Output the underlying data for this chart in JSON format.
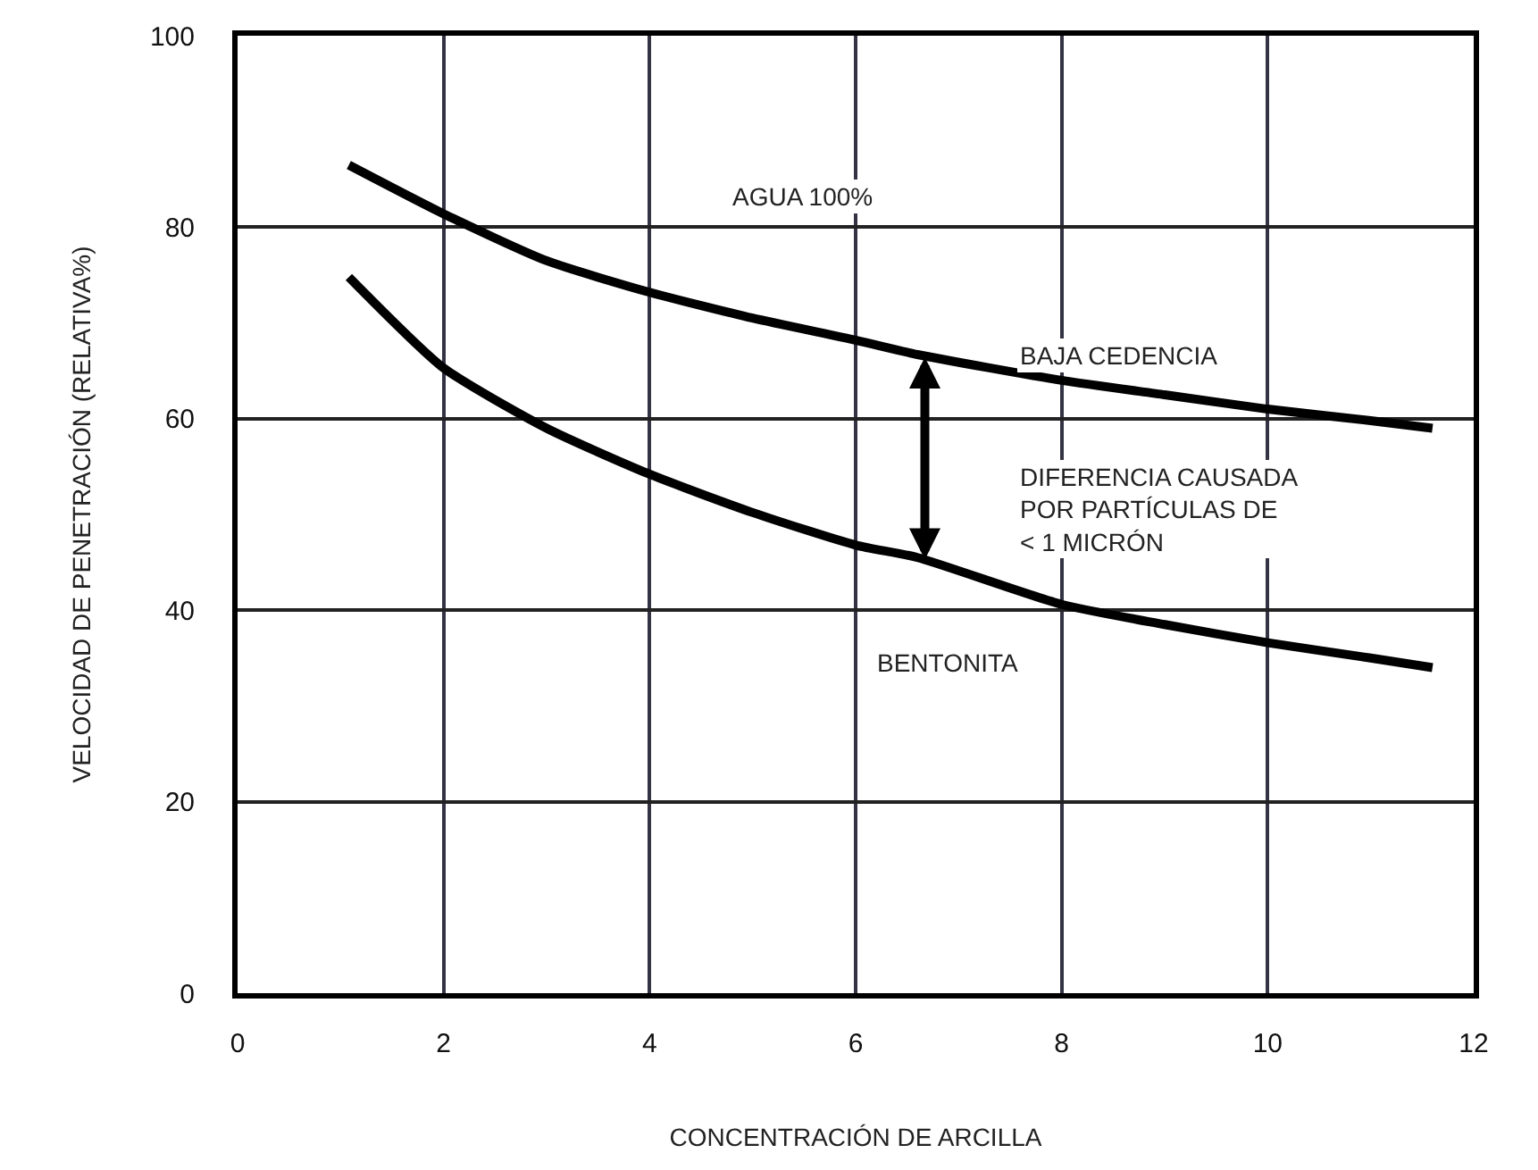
{
  "chart_data": {
    "type": "line",
    "xlabel": "CONCENTRACIÓN DE ARCILLA",
    "ylabel": "VELOCIDAD DE PENETRACIÓN (RELATIVA%)",
    "series": [
      {
        "color": "#000000",
        "x": [
          1.08,
          2,
          3,
          4,
          5,
          6,
          6.6,
          8,
          9,
          10,
          11,
          11.6
        ],
        "values": [
          86.5,
          81.4,
          76.5,
          73.2,
          70.5,
          68.2,
          66.7,
          64,
          62.5,
          61,
          59.8,
          59
        ]
      },
      {
        "color": "#000000",
        "x": [
          1.08,
          2,
          3,
          4,
          5,
          6,
          6.6,
          8,
          9,
          10,
          11,
          11.6
        ],
        "values": [
          74.8,
          65.3,
          59,
          54.2,
          50.2,
          46.8,
          45.5,
          40.6,
          38.5,
          36.6,
          35,
          34
        ]
      }
    ],
    "annotations": [
      "AGUA 100%",
      "BAJA CEDENCIA",
      "DIFERENCIA CAUSADA\nPOR PARTÍCULAS DE\n< 1 MICRÓN",
      "BENTONITA"
    ],
    "xlim": [
      0,
      12
    ],
    "xticks": [
      0,
      2,
      4,
      6,
      8,
      10,
      12
    ],
    "ylim": [
      0,
      100
    ],
    "yticks": [
      0,
      20,
      40,
      60,
      80,
      100
    ],
    "grid": true,
    "marker": "none",
    "line_style": "solid",
    "legend": false
  }
}
